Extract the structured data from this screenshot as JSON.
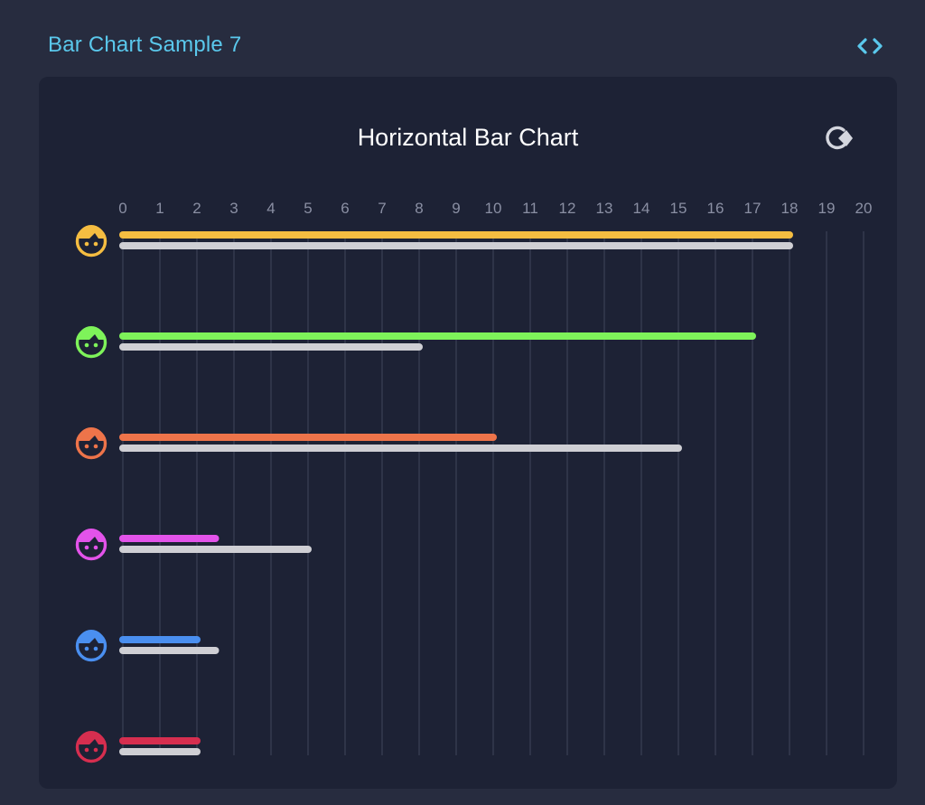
{
  "header": {
    "title": "Bar Chart Sample 7",
    "code_icon": "code-brackets-icon"
  },
  "panel": {
    "reload_icon": "reload-icon"
  },
  "colors": {
    "background": "#272c3f",
    "panel": "#1d2235",
    "accent": "#5ac8ec",
    "grid": "#3b4054",
    "secondary_bar": "#cfcfd4"
  },
  "chart_data": {
    "type": "bar",
    "orientation": "horizontal",
    "title": "Horizontal Bar Chart",
    "xlim": [
      0,
      20
    ],
    "x_ticks": [
      "0",
      "1",
      "2",
      "3",
      "4",
      "5",
      "6",
      "7",
      "8",
      "9",
      "10",
      "11",
      "12",
      "13",
      "14",
      "15",
      "16",
      "17",
      "18",
      "19",
      "20"
    ],
    "grid": true,
    "categories": [
      {
        "icon": "face-icon",
        "color": "#f5bd41"
      },
      {
        "icon": "face-icon",
        "color": "#7ef35a"
      },
      {
        "icon": "face-icon",
        "color": "#ee744a"
      },
      {
        "icon": "face-icon",
        "color": "#e353ea"
      },
      {
        "icon": "face-icon",
        "color": "#4a8ff0"
      },
      {
        "icon": "face-icon",
        "color": "#d62e4f"
      }
    ],
    "series": [
      {
        "values": [
          18,
          17,
          10,
          2.5,
          2,
          2
        ],
        "color": "per-category"
      },
      {
        "values": [
          18,
          8,
          15,
          5,
          2.5,
          2
        ],
        "color": "#cfcfd4"
      }
    ]
  }
}
